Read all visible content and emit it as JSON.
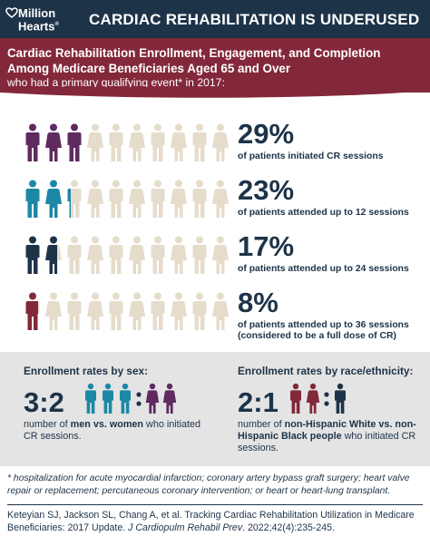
{
  "header": {
    "logo_line1": "Million",
    "logo_line2": "Hearts",
    "logo_mark": "®",
    "title": "CARDIAC REHABILITATION IS UNDERUSED"
  },
  "banner": {
    "title_line1": "Cardiac Rehabilitation Enrollment, Engagement, and Completion",
    "title_line2": "Among Medicare Beneficiaries Aged 65 and Over",
    "subtitle": "who had a primary qualifying event* in 2017:"
  },
  "stats": [
    {
      "percent": "29%",
      "label": "of patients initiated CR sessions",
      "label2": "",
      "filled_fraction": 0.29,
      "color": "#5e2a5f"
    },
    {
      "percent": "23%",
      "label": "of patients attended up to 12 sessions",
      "label2": "",
      "filled_fraction": 0.23,
      "color": "#1d88a6"
    },
    {
      "percent": "17%",
      "label": "of patients attended up to 24 sessions",
      "label2": "",
      "filled_fraction": 0.17,
      "color": "#1d3348"
    },
    {
      "percent": "8%",
      "label": "of patients attended up to 36 sessions",
      "label2": "(considered to be a full dose of CR)",
      "filled_fraction": 0.08,
      "color": "#83283a"
    }
  ],
  "figure_count": 10,
  "colors": {
    "navy": "#1d3348",
    "maroon": "#83283a",
    "purple": "#5e2a5f",
    "teal": "#1d88a6",
    "beige": "#e6dccb",
    "gray_panel": "#e4e4e4"
  },
  "enrollment_sex": {
    "heading": "Enrollment rates by sex:",
    "ratio": "3:2",
    "text_before": "number of ",
    "text_bold": "men vs. women",
    "text_after": " who initiated CR sessions.",
    "men": 3,
    "women": 2
  },
  "enrollment_race": {
    "heading": "Enrollment rates by race/ethnicity:",
    "ratio": "2:1",
    "text_before": "number of ",
    "text_bold": "non-Hispanic White vs. non-Hispanic Black people",
    "text_after": " who initiated CR sessions.",
    "group_a": 2,
    "group_b": 1
  },
  "footnote": "* hospitalization for acute myocardial infarction; coronary artery bypass graft surgery; heart valve repair or replacement; percutaneous coronary intervention; or heart or heart-lung transplant.",
  "citation": {
    "before": "Keteyian SJ, Jackson SL, Chang A, et al. Tracking Cardiac Rehabilitation Utilization in Medicare Beneficiaries: 2017 Update. ",
    "journal": "J Cardiopulm Rehabil Prev",
    "after": ". 2022;42(4):235-245."
  }
}
